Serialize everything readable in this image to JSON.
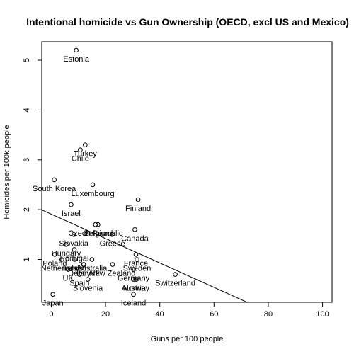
{
  "chart_data": {
    "type": "scatter",
    "title": "Intentional homicide vs Gun Ownership (OECD, excl US and Mexico)",
    "xlabel": "Guns per 100 people",
    "ylabel": "Homicides per 100k people",
    "xlim": [
      -3.5,
      103.5
    ],
    "ylim": [
      0.14,
      5.37
    ],
    "xticks": [
      0,
      20,
      40,
      60,
      80,
      100
    ],
    "yticks": [
      1,
      2,
      3,
      4,
      5
    ],
    "grid": false,
    "legend": "none",
    "points": [
      {
        "label": "Estonia",
        "x": 9.2,
        "y": 5.2
      },
      {
        "label": "Turkey",
        "x": 12.5,
        "y": 3.3
      },
      {
        "label": "Chile",
        "x": 10.7,
        "y": 3.2
      },
      {
        "label": "South Korea",
        "x": 1.1,
        "y": 2.6
      },
      {
        "label": "Luxembourg",
        "x": 15.3,
        "y": 2.5
      },
      {
        "label": "Israel",
        "x": 7.3,
        "y": 2.1
      },
      {
        "label": "Finland",
        "x": 32.0,
        "y": 2.2
      },
      {
        "label": "Czech Republic",
        "x": 16.3,
        "y": 1.7
      },
      {
        "label": "Belgium",
        "x": 17.2,
        "y": 1.7
      },
      {
        "label": "Canada",
        "x": 30.8,
        "y": 1.6
      },
      {
        "label": "Slovakia",
        "x": 8.3,
        "y": 1.5
      },
      {
        "label": "Greece",
        "x": 22.5,
        "y": 1.5
      },
      {
        "label": "Hungary",
        "x": 5.5,
        "y": 1.3
      },
      {
        "label": "Portugal",
        "x": 8.5,
        "y": 1.2
      },
      {
        "label": "Poland",
        "x": 1.3,
        "y": 1.1
      },
      {
        "label": "Netherlands",
        "x": 3.9,
        "y": 1.0
      },
      {
        "label": "Ireland",
        "x": 8.6,
        "y": 1.0
      },
      {
        "label": "France",
        "x": 31.2,
        "y": 1.1
      },
      {
        "label": "Australia",
        "x": 15.0,
        "y": 1.0
      },
      {
        "label": "Sweden",
        "x": 31.6,
        "y": 1.0
      },
      {
        "label": "Denmark",
        "x": 12.0,
        "y": 0.9
      },
      {
        "label": "Italy",
        "x": 11.9,
        "y": 0.9
      },
      {
        "label": "New Zealand",
        "x": 22.6,
        "y": 0.9
      },
      {
        "label": "UK",
        "x": 6.2,
        "y": 0.8
      },
      {
        "label": "Switzerland",
        "x": 45.7,
        "y": 0.7
      },
      {
        "label": "Germany",
        "x": 30.3,
        "y": 0.8
      },
      {
        "label": "Spain",
        "x": 10.4,
        "y": 0.7
      },
      {
        "label": "Slovenia",
        "x": 13.5,
        "y": 0.6
      },
      {
        "label": "Norway",
        "x": 31.3,
        "y": 0.6
      },
      {
        "label": "Austria",
        "x": 30.4,
        "y": 0.6
      },
      {
        "label": "Japan",
        "x": 0.6,
        "y": 0.3
      },
      {
        "label": "Iceland",
        "x": 30.3,
        "y": 0.3
      }
    ],
    "trend_line": {
      "intercept": 1.91,
      "slope": -0.0245
    }
  }
}
